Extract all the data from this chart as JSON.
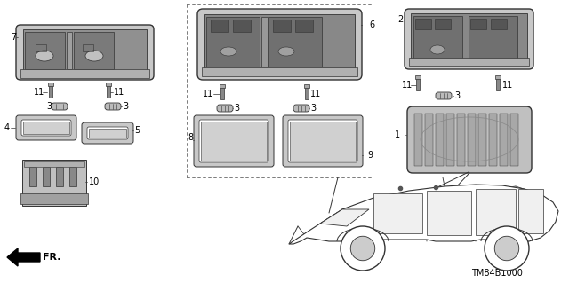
{
  "background_color": "#ffffff",
  "diagram_code": "TM84B1000",
  "fr_label": "FR.",
  "line_color": "#333333",
  "text_color": "#000000",
  "label_fontsize": 7,
  "code_fontsize": 7,
  "figsize": [
    6.4,
    3.19
  ],
  "dpi": 100
}
